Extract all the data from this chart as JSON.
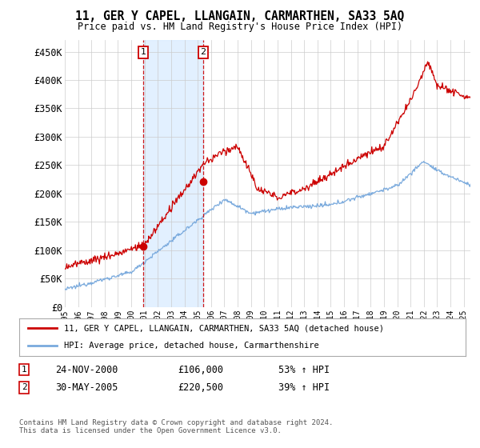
{
  "title": "11, GER Y CAPEL, LLANGAIN, CARMARTHEN, SA33 5AQ",
  "subtitle": "Price paid vs. HM Land Registry's House Price Index (HPI)",
  "xlim_start": 1995.0,
  "xlim_end": 2025.5,
  "ylim": [
    0,
    470000
  ],
  "yticks": [
    0,
    50000,
    100000,
    150000,
    200000,
    250000,
    300000,
    350000,
    400000,
    450000
  ],
  "ytick_labels": [
    "£0",
    "£50K",
    "£100K",
    "£150K",
    "£200K",
    "£250K",
    "£300K",
    "£350K",
    "£400K",
    "£450K"
  ],
  "transaction1_x": 2000.9,
  "transaction1_y": 106000,
  "transaction1_label": "1",
  "transaction1_date": "24-NOV-2000",
  "transaction1_price": "£106,000",
  "transaction1_hpi": "53% ↑ HPI",
  "transaction2_x": 2005.41,
  "transaction2_y": 220500,
  "transaction2_label": "2",
  "transaction2_date": "30-MAY-2005",
  "transaction2_price": "£220,500",
  "transaction2_hpi": "39% ↑ HPI",
  "legend_line1": "11, GER Y CAPEL, LLANGAIN, CARMARTHEN, SA33 5AQ (detached house)",
  "legend_line2": "HPI: Average price, detached house, Carmarthenshire",
  "footer": "Contains HM Land Registry data © Crown copyright and database right 2024.\nThis data is licensed under the Open Government Licence v3.0.",
  "hpi_color": "#7aaadd",
  "price_color": "#cc0000",
  "shading_color": "#ddeeff",
  "background_color": "#ffffff",
  "grid_color": "#cccccc"
}
